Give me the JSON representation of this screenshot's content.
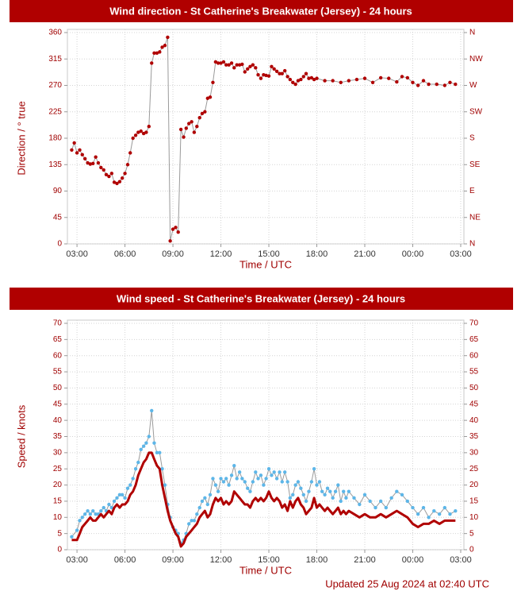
{
  "chart_data": [
    {
      "type": "line",
      "title": "Wind direction - St Catherine's Breakwater (Jersey) - 24 hours",
      "x_label": "Time / UTC",
      "y_label": "Direction / ° true",
      "x": [
        2.67,
        2.83,
        3.0,
        3.17,
        3.33,
        3.5,
        3.67,
        3.83,
        4.0,
        4.17,
        4.33,
        4.5,
        4.67,
        4.83,
        5.0,
        5.17,
        5.33,
        5.5,
        5.67,
        5.83,
        6.0,
        6.17,
        6.33,
        6.5,
        6.67,
        6.83,
        7.0,
        7.17,
        7.33,
        7.5,
        7.67,
        7.83,
        8.0,
        8.17,
        8.33,
        8.5,
        8.67,
        8.83,
        9.0,
        9.17,
        9.33,
        9.5,
        9.67,
        9.83,
        10.0,
        10.17,
        10.33,
        10.5,
        10.67,
        10.83,
        11.0,
        11.17,
        11.33,
        11.5,
        11.67,
        11.83,
        12.0,
        12.17,
        12.33,
        12.5,
        12.67,
        12.83,
        13.0,
        13.17,
        13.33,
        13.5,
        13.67,
        13.83,
        14.0,
        14.17,
        14.33,
        14.5,
        14.67,
        14.83,
        15.0,
        15.17,
        15.33,
        15.5,
        15.67,
        15.83,
        16.0,
        16.17,
        16.33,
        16.5,
        16.67,
        16.83,
        17.0,
        17.17,
        17.33,
        17.5,
        17.67,
        17.83,
        18.0,
        18.5,
        19.0,
        19.5,
        20.0,
        20.5,
        21.0,
        21.5,
        22.0,
        22.5,
        23.0,
        23.33,
        23.67,
        24.0,
        24.33,
        24.67,
        25.0,
        25.5,
        26.0,
        26.33,
        26.67
      ],
      "values": [
        160,
        172,
        155,
        160,
        152,
        145,
        138,
        136,
        137,
        148,
        138,
        130,
        126,
        118,
        115,
        120,
        105,
        103,
        106,
        112,
        120,
        135,
        155,
        180,
        185,
        190,
        192,
        188,
        190,
        200,
        308,
        325,
        325,
        327,
        335,
        338,
        352,
        5,
        25,
        28,
        20,
        195,
        182,
        197,
        205,
        208,
        190,
        200,
        215,
        222,
        225,
        248,
        250,
        275,
        310,
        308,
        308,
        310,
        305,
        305,
        308,
        300,
        305,
        305,
        306,
        293,
        298,
        302,
        305,
        300,
        288,
        282,
        288,
        287,
        286,
        302,
        298,
        294,
        290,
        290,
        295,
        285,
        280,
        275,
        272,
        278,
        280,
        285,
        290,
        282,
        283,
        280,
        282,
        278,
        278,
        275,
        278,
        280,
        282,
        275,
        283,
        282,
        276,
        285,
        283,
        275,
        270,
        278,
        272,
        272,
        270,
        275,
        272
      ],
      "color": "#b00000",
      "line_color": "#9a9a9a",
      "line_width": 1,
      "markers": true,
      "xlim": [
        2.4,
        27.2
      ],
      "xticks": [
        {
          "value": 3,
          "label": "03:00"
        },
        {
          "value": 6,
          "label": "06:00"
        },
        {
          "value": 9,
          "label": "09:00"
        },
        {
          "value": 12,
          "label": "12:00"
        },
        {
          "value": 15,
          "label": "15:00"
        },
        {
          "value": 18,
          "label": "18:00"
        },
        {
          "value": 21,
          "label": "21:00"
        },
        {
          "value": 24,
          "label": "00:00"
        },
        {
          "value": 27,
          "label": "03:00"
        }
      ],
      "ylim": [
        0,
        360
      ],
      "yticks": [
        0,
        45,
        90,
        135,
        180,
        225,
        270,
        315,
        360
      ],
      "y2lim": [
        0,
        360
      ],
      "y2ticks": [
        {
          "value": 0,
          "label": "N"
        },
        {
          "value": 45,
          "label": "NE"
        },
        {
          "value": 90,
          "label": "E"
        },
        {
          "value": 135,
          "label": "SE"
        },
        {
          "value": 180,
          "label": "S"
        },
        {
          "value": 225,
          "label": "SW"
        },
        {
          "value": 270,
          "label": "W"
        },
        {
          "value": 315,
          "label": "NW"
        },
        {
          "value": 360,
          "label": "N"
        }
      ],
      "grid": true
    },
    {
      "type": "line",
      "title": "Wind speed - St Catherine's Breakwater (Jersey) - 24 hours",
      "x_label": "Time / UTC",
      "y_label": "Speed / knots",
      "x": [
        2.67,
        3.0,
        3.17,
        3.33,
        3.5,
        3.67,
        3.83,
        4.0,
        4.17,
        4.33,
        4.5,
        4.67,
        4.83,
        5.0,
        5.17,
        5.33,
        5.5,
        5.67,
        5.83,
        6.0,
        6.17,
        6.33,
        6.5,
        6.67,
        6.83,
        7.0,
        7.17,
        7.33,
        7.5,
        7.67,
        7.83,
        8.0,
        8.17,
        8.33,
        8.5,
        8.67,
        8.83,
        9.0,
        9.17,
        9.33,
        9.5,
        9.67,
        9.83,
        10.0,
        10.17,
        10.33,
        10.5,
        10.67,
        10.83,
        11.0,
        11.17,
        11.33,
        11.5,
        11.67,
        11.83,
        12.0,
        12.17,
        12.33,
        12.5,
        12.67,
        12.83,
        13.0,
        13.17,
        13.33,
        13.5,
        13.67,
        13.83,
        14.0,
        14.17,
        14.33,
        14.5,
        14.67,
        14.83,
        15.0,
        15.17,
        15.33,
        15.5,
        15.67,
        15.83,
        16.0,
        16.17,
        16.33,
        16.5,
        16.67,
        16.83,
        17.0,
        17.17,
        17.33,
        17.5,
        17.67,
        17.83,
        18.0,
        18.17,
        18.33,
        18.5,
        18.67,
        18.83,
        19.0,
        19.17,
        19.33,
        19.5,
        19.67,
        19.83,
        20.0,
        20.33,
        20.67,
        21.0,
        21.33,
        21.67,
        22.0,
        22.33,
        22.67,
        23.0,
        23.33,
        23.67,
        24.0,
        24.33,
        24.67,
        25.0,
        25.33,
        25.67,
        26.0,
        26.33,
        26.67
      ],
      "series": [
        {
          "color": "#5db6e8",
          "line_color": "#9a9a9a",
          "line_width": 1,
          "markers": true,
          "values": [
            4,
            6,
            9,
            10,
            11,
            12,
            11,
            12,
            11,
            11,
            12,
            13,
            12,
            14,
            13,
            15,
            16,
            17,
            17,
            16,
            19,
            20,
            22,
            25,
            27,
            31,
            32,
            33,
            35,
            43,
            33,
            30,
            30,
            25,
            20,
            14,
            10,
            7,
            6,
            5,
            2,
            3,
            5,
            8,
            9,
            9,
            11,
            13,
            15,
            16,
            14,
            17,
            22,
            20,
            18,
            22,
            21,
            22,
            20,
            23,
            26,
            22,
            24,
            22,
            21,
            19,
            18,
            21,
            24,
            22,
            23,
            20,
            22,
            25,
            23,
            24,
            22,
            24,
            21,
            24,
            21,
            16,
            17,
            20,
            21,
            19,
            17,
            15,
            18,
            21,
            25,
            20,
            21,
            18,
            17,
            19,
            18,
            16,
            18,
            20,
            15,
            18,
            16,
            18,
            16,
            14,
            17,
            15,
            13,
            15,
            13,
            16,
            18,
            17,
            15,
            13,
            11,
            13,
            10,
            12,
            11,
            13,
            11,
            12
          ]
        },
        {
          "color": "#b00000",
          "line_color": "#b00000",
          "line_width": 3,
          "markers": false,
          "values": [
            3,
            3,
            5,
            7,
            8,
            9,
            10,
            9,
            9,
            10,
            11,
            10,
            11,
            12,
            11,
            13,
            14,
            13,
            14,
            14,
            15,
            17,
            18,
            20,
            23,
            25,
            27,
            28,
            30,
            30,
            28,
            26,
            25,
            20,
            16,
            12,
            9,
            7,
            5,
            4,
            1,
            2,
            4,
            5,
            6,
            7,
            8,
            10,
            11,
            12,
            10,
            11,
            14,
            16,
            15,
            16,
            14,
            15,
            14,
            15,
            18,
            17,
            16,
            15,
            14,
            14,
            13,
            15,
            16,
            15,
            16,
            15,
            16,
            18,
            16,
            15,
            16,
            15,
            13,
            14,
            12,
            15,
            13,
            15,
            16,
            14,
            13,
            11,
            12,
            13,
            16,
            13,
            14,
            13,
            12,
            13,
            12,
            11,
            12,
            13,
            11,
            12,
            11,
            12,
            11,
            10,
            11,
            10,
            10,
            11,
            10,
            11,
            12,
            11,
            10,
            8,
            7,
            8,
            8,
            9,
            8,
            9,
            9,
            9
          ]
        }
      ],
      "xlim": [
        2.4,
        27.2
      ],
      "xticks": [
        {
          "value": 3,
          "label": "03:00"
        },
        {
          "value": 6,
          "label": "06:00"
        },
        {
          "value": 9,
          "label": "09:00"
        },
        {
          "value": 12,
          "label": "12:00"
        },
        {
          "value": 15,
          "label": "15:00"
        },
        {
          "value": 18,
          "label": "18:00"
        },
        {
          "value": 21,
          "label": "21:00"
        },
        {
          "value": 24,
          "label": "00:00"
        },
        {
          "value": 27,
          "label": "03:00"
        }
      ],
      "ylim": [
        0,
        70
      ],
      "yticks": [
        0,
        5,
        10,
        15,
        20,
        25,
        30,
        35,
        40,
        45,
        50,
        55,
        60,
        65,
        70
      ],
      "y2lim": [
        0,
        70
      ],
      "y2ticks": [
        0,
        5,
        10,
        15,
        20,
        25,
        30,
        35,
        40,
        45,
        50,
        55,
        60,
        65,
        70
      ],
      "grid": true
    }
  ],
  "footer": "Updated 25 Aug 2024 at 02:40 UTC"
}
